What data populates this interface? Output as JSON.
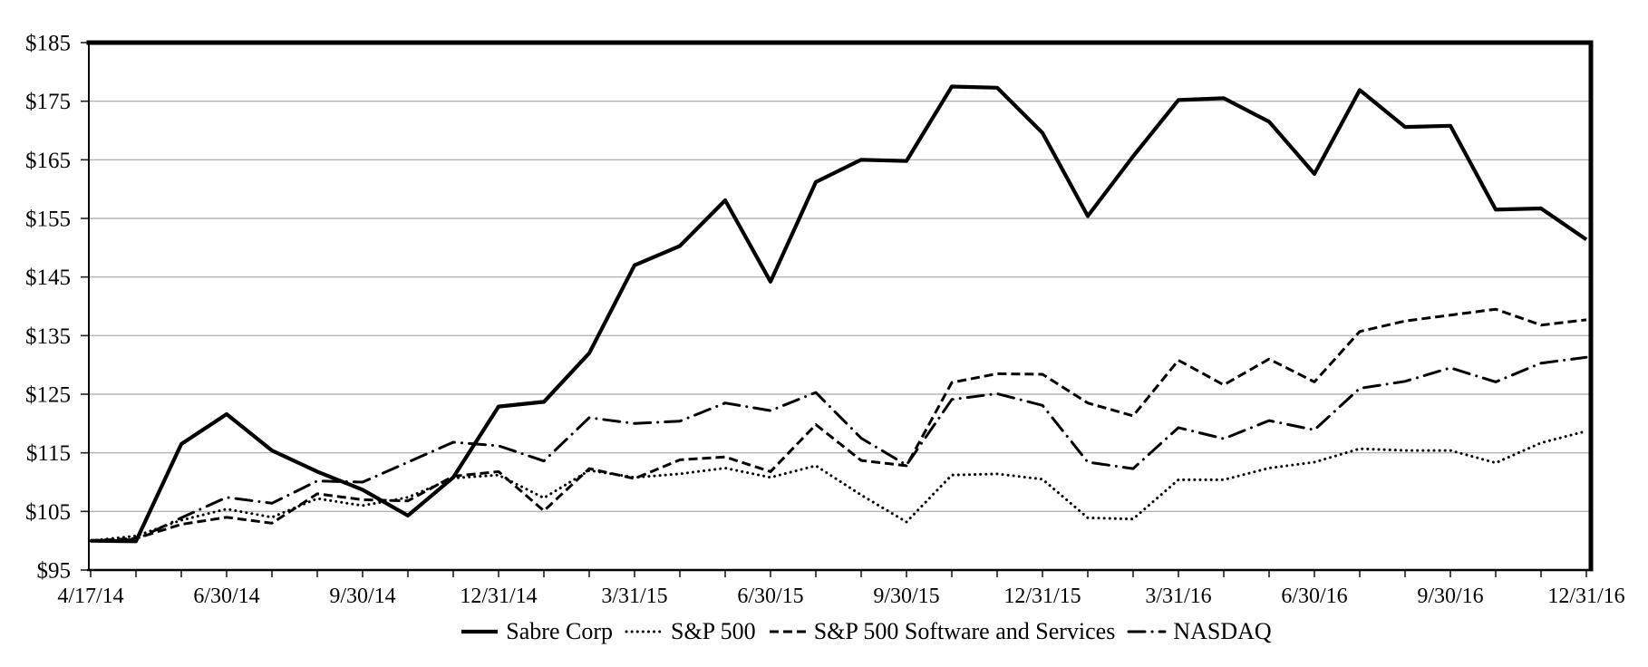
{
  "figure": {
    "background_color": "#ffffff",
    "plot_border_color": "#000000",
    "gridline_color": "#a6a6a6"
  },
  "chart_data": {
    "type": "line",
    "grid": "horizontal",
    "legend_position": "bottom",
    "x": [
      "4/17/14",
      "4/30/14",
      "5/31/14",
      "6/30/14",
      "7/31/14",
      "8/31/14",
      "9/30/14",
      "10/31/14",
      "11/30/14",
      "12/31/14",
      "1/31/15",
      "2/28/15",
      "3/31/15",
      "4/30/15",
      "5/31/15",
      "6/30/15",
      "7/31/15",
      "8/31/15",
      "9/30/15",
      "10/31/15",
      "11/30/15",
      "12/31/15",
      "1/31/16",
      "2/29/16",
      "3/31/16",
      "4/30/16",
      "5/31/16",
      "6/30/16",
      "7/31/16",
      "8/31/16",
      "9/30/16",
      "10/31/16",
      "11/30/16",
      "12/31/16"
    ],
    "x_axis": {
      "tick_labels": [
        "4/17/14",
        "6/30/14",
        "9/30/14",
        "12/31/14",
        "3/31/15",
        "6/30/15",
        "9/30/15",
        "12/31/15",
        "3/31/16",
        "6/30/16",
        "9/30/16",
        "12/31/16"
      ],
      "label_every_n_points": 3
    },
    "y_axis": {
      "min": 95,
      "max": 185,
      "step": 10,
      "tick_prefix": "$",
      "tick_labels": [
        "$95",
        "$105",
        "$115",
        "$125",
        "$135",
        "$145",
        "$155",
        "$165",
        "$175",
        "$185"
      ]
    },
    "series": [
      {
        "name": "Sabre Corp",
        "line_style": "solid",
        "color": "#000000",
        "values": [
          100.0,
          99.9,
          116.5,
          121.6,
          115.4,
          111.8,
          108.7,
          104.3,
          110.8,
          122.9,
          123.7,
          132.0,
          147.0,
          150.3,
          158.1,
          144.2,
          161.2,
          165.0,
          164.8,
          177.5,
          177.3,
          169.6,
          155.4,
          165.6,
          175.2,
          175.5,
          171.5,
          162.6,
          176.9,
          170.6,
          170.8,
          156.5,
          156.7,
          151.4
        ]
      },
      {
        "name": "S&P 500",
        "line_style": "dotted",
        "color": "#000000",
        "values": [
          100.0,
          100.8,
          103.5,
          105.4,
          104.0,
          107.2,
          106.0,
          107.4,
          110.7,
          111.2,
          107.3,
          112.0,
          110.8,
          111.4,
          112.4,
          110.8,
          112.8,
          107.8,
          103.2,
          111.2,
          111.4,
          110.5,
          103.9,
          103.7,
          110.4,
          110.4,
          112.4,
          113.4,
          115.7,
          115.4,
          115.4,
          113.3,
          116.7,
          118.7
        ]
      },
      {
        "name": "S&P 500 Software and Services",
        "line_style": "dashed",
        "color": "#000000",
        "values": [
          100.0,
          100.4,
          102.8,
          104.0,
          103.0,
          108.0,
          107.0,
          106.8,
          111.0,
          111.8,
          105.1,
          112.3,
          110.6,
          113.8,
          114.3,
          111.8,
          119.8,
          113.7,
          112.8,
          127.0,
          128.5,
          128.4,
          123.5,
          121.3,
          130.8,
          126.6,
          131.0,
          127.1,
          135.7,
          137.5,
          138.5,
          139.5,
          136.8,
          137.7
        ]
      },
      {
        "name": "NASDAQ",
        "line_style": "dash-dot",
        "color": "#000000",
        "values": [
          100.0,
          100.2,
          103.9,
          107.4,
          106.4,
          110.2,
          110.0,
          113.4,
          116.8,
          116.2,
          113.6,
          121.0,
          120.0,
          120.4,
          123.5,
          122.2,
          125.3,
          117.5,
          112.9,
          124.1,
          125.1,
          123.1,
          113.4,
          112.3,
          119.3,
          117.4,
          120.5,
          118.9,
          126.0,
          127.2,
          129.5,
          127.1,
          130.3,
          131.3
        ]
      }
    ]
  }
}
